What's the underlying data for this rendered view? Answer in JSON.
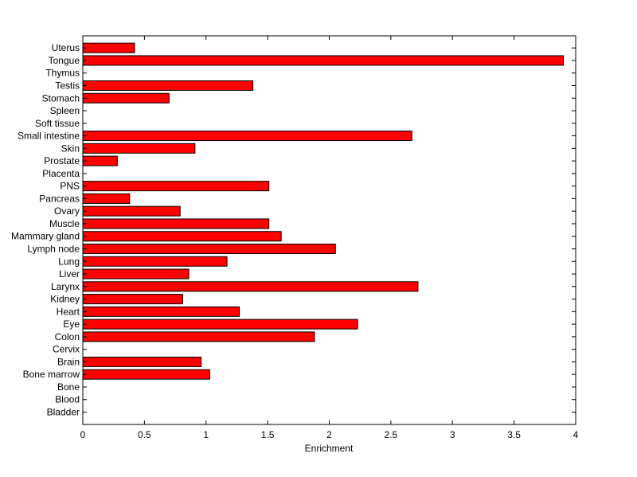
{
  "chart_data": {
    "type": "bar",
    "orientation": "horizontal",
    "xlabel": "Enrichment",
    "ylabel": "",
    "title": "",
    "xlim": [
      0,
      4
    ],
    "xticks": [
      0,
      0.5,
      1,
      1.5,
      2,
      2.5,
      3,
      3.5,
      4
    ],
    "xtick_labels": [
      "0",
      "0.5",
      "1",
      "1.5",
      "2",
      "2.5",
      "3",
      "3.5",
      "4"
    ],
    "grid": false,
    "legend": "none",
    "bar_color": "#ff0000",
    "bar_edge_color": "#000000",
    "categories": [
      "Bladder",
      "Blood",
      "Bone",
      "Bone marrow",
      "Brain",
      "Cervix",
      "Colon",
      "Eye",
      "Heart",
      "Kidney",
      "Larynx",
      "Liver",
      "Lung",
      "Lymph node",
      "Mammary gland",
      "Muscle",
      "Ovary",
      "Pancreas",
      "PNS",
      "Placenta",
      "Prostate",
      "Skin",
      "Small intestine",
      "Soft tissue",
      "Spleen",
      "Stomach",
      "Testis",
      "Thymus",
      "Tongue",
      "Uterus"
    ],
    "values": [
      0,
      0,
      0,
      1.03,
      0.96,
      0,
      1.88,
      2.23,
      1.27,
      0.81,
      2.72,
      0.86,
      1.17,
      2.05,
      1.61,
      1.51,
      0.79,
      0.38,
      1.51,
      0,
      0.28,
      0.91,
      2.67,
      0,
      0,
      0.7,
      1.38,
      0,
      3.9,
      0.42
    ]
  }
}
